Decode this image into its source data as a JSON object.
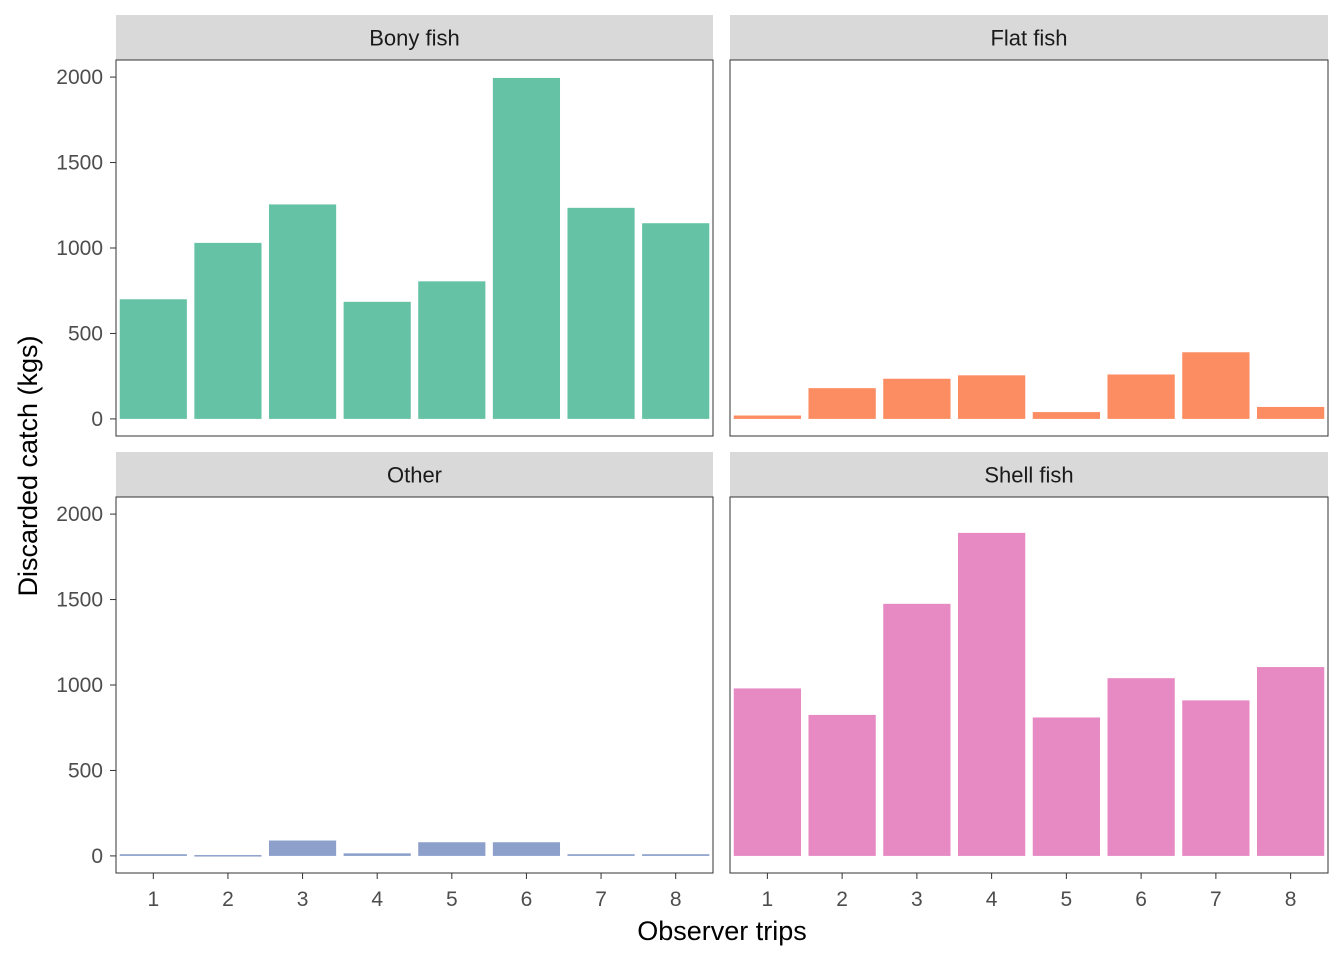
{
  "chart_data": {
    "type": "bar",
    "layout": "facet_wrap 2x2",
    "xlabel": "Observer trips",
    "ylabel": "Discarded catch (kgs)",
    "categories": [
      "1",
      "2",
      "3",
      "4",
      "5",
      "6",
      "7",
      "8"
    ],
    "ylim": [
      -100,
      2100
    ],
    "yticks": [
      "0",
      "500",
      "1000",
      "1500",
      "2000"
    ],
    "grid": false,
    "facets": [
      {
        "name": "Bony fish",
        "color": "#66c2a5",
        "values": [
          700,
          1030,
          1255,
          685,
          805,
          1995,
          1235,
          1145
        ]
      },
      {
        "name": "Flat fish",
        "color": "#fc8d62",
        "values": [
          20,
          180,
          235,
          255,
          40,
          260,
          390,
          70
        ]
      },
      {
        "name": "Other",
        "color": "#8da0cb",
        "values": [
          10,
          5,
          90,
          15,
          80,
          80,
          10,
          10
        ]
      },
      {
        "name": "Shell fish",
        "color": "#e78ac3",
        "values": [
          980,
          825,
          1475,
          1890,
          810,
          1040,
          910,
          1105
        ]
      }
    ]
  }
}
